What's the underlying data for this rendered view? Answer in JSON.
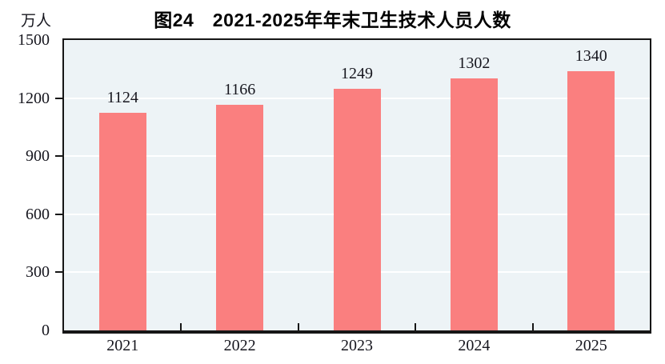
{
  "chart_data": {
    "type": "bar",
    "title": "图24　2021-2025年年末卫生技术人员人数",
    "ylabel": "万人",
    "xlabel": "",
    "categories": [
      "2021",
      "2022",
      "2023",
      "2024",
      "2025"
    ],
    "values": [
      1124,
      1166,
      1249,
      1302,
      1340
    ],
    "ylim": [
      0,
      1500
    ],
    "yticks": [
      0,
      300,
      600,
      900,
      1200,
      1500
    ],
    "grid": "horizontal white gridlines at interior ticks",
    "legend": "none",
    "value_labels": [
      1124,
      1166,
      1249,
      1302,
      1340
    ],
    "colors": {
      "bar": "#fa7f7f",
      "plot_background": "#edf3f6",
      "gridline": "#ffffff",
      "axis": "#161616",
      "text": "#16161e"
    }
  }
}
